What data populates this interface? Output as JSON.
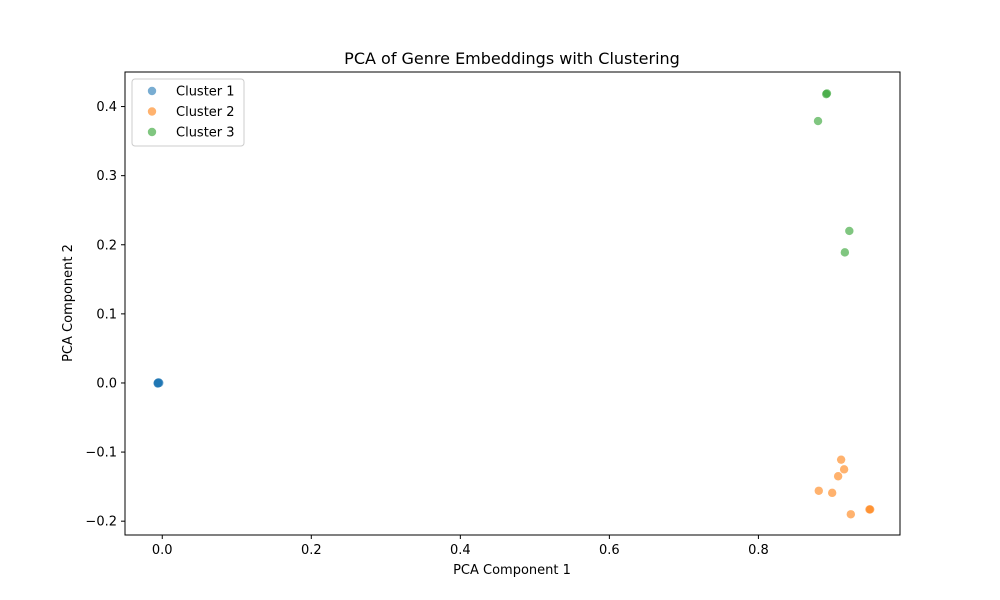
{
  "chart_data": {
    "type": "scatter",
    "title": "PCA of Genre Embeddings with Clustering",
    "xlabel": "PCA Component 1",
    "ylabel": "PCA Component 2",
    "xlim": [
      -0.05,
      0.99
    ],
    "ylim": [
      -0.22,
      0.45
    ],
    "xticks": [
      0.0,
      0.2,
      0.4,
      0.6,
      0.8
    ],
    "xtick_labels": [
      "0.0",
      "0.2",
      "0.4",
      "0.6",
      "0.8"
    ],
    "yticks": [
      -0.2,
      -0.1,
      0.0,
      0.1,
      0.2,
      0.3,
      0.4
    ],
    "ytick_labels": [
      "−0.2",
      "−0.1",
      "0.0",
      "0.1",
      "0.2",
      "0.3",
      "0.4"
    ],
    "grid": false,
    "legend_position": "top-left",
    "series": [
      {
        "name": "Cluster 1",
        "color": "#1f77b4",
        "points": [
          [
            -0.006,
            0.0
          ],
          [
            -0.006,
            0.0
          ],
          [
            -0.005,
            0.0
          ],
          [
            -0.006,
            -0.001
          ],
          [
            -0.005,
            0.001
          ],
          [
            -0.004,
            0.0
          ]
        ]
      },
      {
        "name": "Cluster 2",
        "color": "#ff7f0e",
        "points": [
          [
            0.911,
            -0.111
          ],
          [
            0.915,
            -0.125
          ],
          [
            0.907,
            -0.135
          ],
          [
            0.881,
            -0.156
          ],
          [
            0.899,
            -0.159
          ],
          [
            0.924,
            -0.19
          ],
          [
            0.949,
            -0.183
          ],
          [
            0.95,
            -0.183
          ]
        ]
      },
      {
        "name": "Cluster 3",
        "color": "#2ca02c",
        "points": [
          [
            0.891,
            0.418
          ],
          [
            0.892,
            0.419
          ],
          [
            0.88,
            0.379
          ],
          [
            0.922,
            0.22
          ],
          [
            0.916,
            0.189
          ]
        ]
      }
    ]
  }
}
